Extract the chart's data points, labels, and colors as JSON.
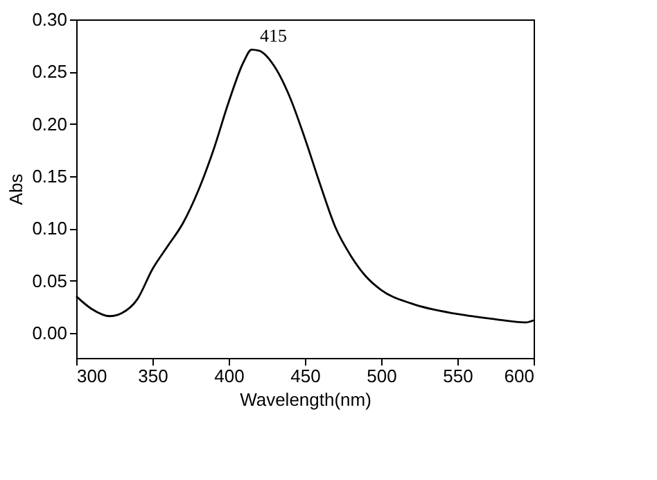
{
  "chart_data": {
    "type": "line",
    "xlabel": "Wavelength(nm)",
    "ylabel": "Abs",
    "x": [
      300,
      310,
      322,
      330,
      340,
      350,
      360,
      370,
      380,
      390,
      400,
      410,
      415,
      420,
      430,
      440,
      450,
      460,
      470,
      480,
      490,
      500,
      520,
      550,
      575,
      595,
      600
    ],
    "series": [
      {
        "color": "#000000",
        "values": [
          0.035,
          0.023,
          0.016,
          0.019,
          0.032,
          0.061,
          0.083,
          0.105,
          0.136,
          0.175,
          0.221,
          0.26,
          0.271,
          0.27,
          0.255,
          0.226,
          0.186,
          0.142,
          0.101,
          0.074,
          0.054,
          0.041,
          0.028,
          0.018,
          0.013,
          0.01,
          0.012
        ]
      }
    ],
    "xlim": [
      300,
      600
    ],
    "xticks": [
      300,
      350,
      400,
      450,
      500,
      550,
      600
    ],
    "ylim": [
      -0.024,
      0.3
    ],
    "yticks": [
      {
        "value": 0.0,
        "label": "0.00"
      },
      {
        "value": 0.05,
        "label": "0.05"
      },
      {
        "value": 0.1,
        "label": "0.10"
      },
      {
        "value": 0.15,
        "label": "0.15"
      },
      {
        "value": 0.2,
        "label": "0.20"
      },
      {
        "value": 0.25,
        "label": "0.25"
      },
      {
        "value": 0.3,
        "label": "0.30"
      }
    ],
    "annotations": [
      {
        "text": "415",
        "x": 415,
        "y": 0.271
      }
    ],
    "grid": false,
    "marker": "none",
    "line_style": "solid"
  }
}
